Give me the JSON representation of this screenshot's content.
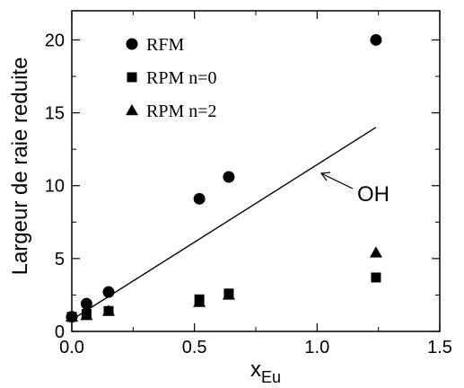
{
  "chart_data": {
    "type": "scatter",
    "xlabel_main": "x",
    "xlabel_sub": "Eu",
    "ylabel": "Largeur de raie reduite",
    "xlim": [
      0,
      1.5
    ],
    "ylim": [
      0,
      22
    ],
    "x_ticks": [
      0.0,
      0.5,
      1.0,
      1.5
    ],
    "x_tick_labels": [
      "0.0",
      "0.5",
      "1.0",
      "1.5"
    ],
    "y_ticks": [
      0,
      5,
      10,
      15,
      20
    ],
    "y_tick_labels": [
      "0",
      "5",
      "10",
      "15",
      "20"
    ],
    "grid": false,
    "legend_placement": "top-left",
    "series": [
      {
        "name": "RFM",
        "marker": "circle",
        "x": [
          0.0,
          0.06,
          0.15,
          0.52,
          0.64,
          1.24
        ],
        "y": [
          1.0,
          1.9,
          2.7,
          9.1,
          10.6,
          20.0
        ]
      },
      {
        "name": "RPM n=0",
        "marker": "square",
        "x": [
          0.0,
          0.06,
          0.15,
          0.52,
          0.64,
          1.24
        ],
        "y": [
          1.0,
          1.2,
          1.4,
          2.2,
          2.6,
          3.7
        ]
      },
      {
        "name": "RPM n=2",
        "marker": "triangle",
        "x": [
          0.0,
          0.06,
          0.15,
          0.52,
          0.64,
          1.24
        ],
        "y": [
          1.0,
          1.1,
          1.4,
          2.0,
          2.5,
          5.4
        ]
      }
    ],
    "line": {
      "label": "OH",
      "x": [
        0.0,
        1.24
      ],
      "y": [
        0.8,
        14.0
      ]
    }
  }
}
